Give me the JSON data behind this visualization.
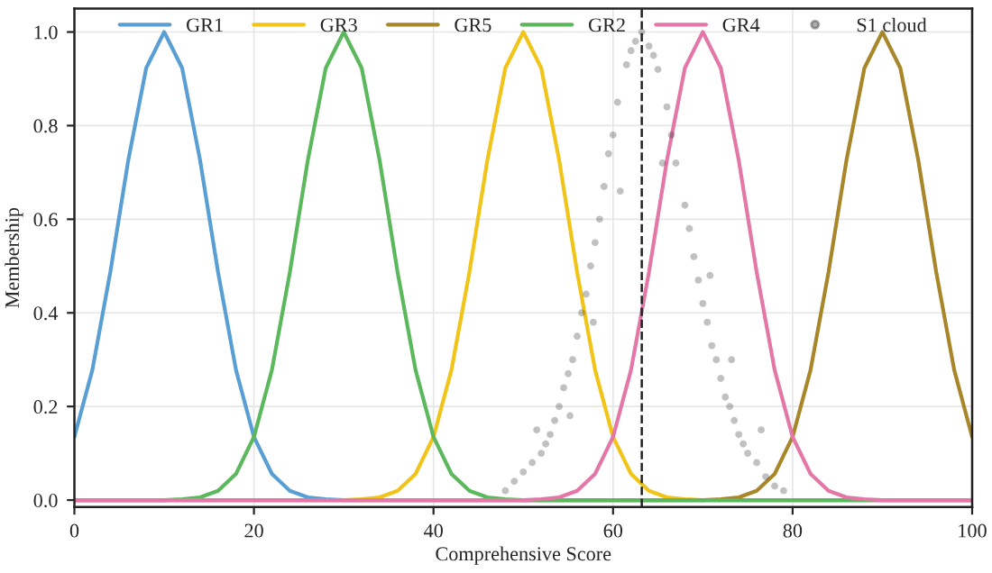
{
  "chart_data": {
    "type": "line",
    "xlabel": "Comprehensive Score",
    "ylabel": "Membership",
    "xlim": [
      0,
      100
    ],
    "xticks": [
      0,
      20,
      40,
      60,
      80,
      100
    ],
    "ylim": [
      -0.015,
      1.05
    ],
    "yticks": [
      {
        "value": 0,
        "label": "0.0"
      },
      {
        "value": 0.2,
        "label": "0.2"
      },
      {
        "value": 0.4,
        "label": "0.4"
      },
      {
        "value": 0.6,
        "label": "0.6"
      },
      {
        "value": 0.8,
        "label": "0.8"
      },
      {
        "value": 1,
        "label": "1.0"
      }
    ],
    "grid": true,
    "legend": "top",
    "marker": "none",
    "line_style": "solid",
    "series": [
      {
        "name": "GR1",
        "color": "#5a9fd4",
        "x": [
          0,
          2,
          4,
          6,
          8,
          10,
          12,
          14,
          16,
          18,
          20,
          22,
          24,
          26,
          28,
          30,
          100
        ],
        "values": [
          0.135,
          0.278,
          0.487,
          0.726,
          0.923,
          1,
          0.923,
          0.726,
          0.487,
          0.278,
          0.135,
          0.056,
          0.02,
          0.006,
          0.002,
          0,
          0
        ]
      },
      {
        "name": "GR3",
        "color": "#f0c419",
        "x": [
          0,
          30,
          32,
          34,
          36,
          38,
          40,
          42,
          44,
          46,
          48,
          50,
          52,
          54,
          56,
          58,
          60,
          62,
          64,
          66,
          68,
          70,
          100
        ],
        "values": [
          0,
          0,
          0.002,
          0.006,
          0.02,
          0.056,
          0.135,
          0.278,
          0.487,
          0.726,
          0.923,
          1,
          0.923,
          0.726,
          0.487,
          0.278,
          0.135,
          0.056,
          0.02,
          0.006,
          0.002,
          0,
          0
        ]
      },
      {
        "name": "GR5",
        "color": "#a8862a",
        "x": [
          0,
          70,
          72,
          74,
          76,
          78,
          80,
          82,
          84,
          86,
          88,
          90,
          92,
          94,
          96,
          98,
          100
        ],
        "values": [
          0,
          0,
          0.002,
          0.006,
          0.02,
          0.056,
          0.135,
          0.278,
          0.487,
          0.726,
          0.923,
          1,
          0.923,
          0.726,
          0.487,
          0.278,
          0.135
        ]
      },
      {
        "name": "GR2",
        "color": "#5cb85c",
        "x": [
          0,
          10,
          12,
          14,
          16,
          18,
          20,
          22,
          24,
          26,
          28,
          30,
          32,
          34,
          36,
          38,
          40,
          42,
          44,
          46,
          48,
          50,
          100
        ],
        "values": [
          0,
          0,
          0.002,
          0.006,
          0.02,
          0.056,
          0.135,
          0.278,
          0.487,
          0.726,
          0.923,
          1,
          0.923,
          0.726,
          0.487,
          0.278,
          0.135,
          0.056,
          0.02,
          0.006,
          0.002,
          0,
          0
        ]
      },
      {
        "name": "GR4",
        "color": "#e377a8",
        "x": [
          0,
          50,
          52,
          54,
          56,
          58,
          60,
          62,
          64,
          66,
          68,
          70,
          72,
          74,
          76,
          78,
          80,
          82,
          84,
          86,
          88,
          90,
          100
        ],
        "values": [
          0,
          0,
          0.002,
          0.006,
          0.02,
          0.056,
          0.135,
          0.278,
          0.487,
          0.726,
          0.923,
          1,
          0.923,
          0.726,
          0.487,
          0.278,
          0.135,
          0.056,
          0.02,
          0.006,
          0.002,
          0,
          0
        ]
      },
      {
        "name": "S1 cloud",
        "type": "scatter",
        "marker": "circle",
        "color": "#333333",
        "x": [
          63.2,
          62.5,
          64,
          61.5,
          65,
          62,
          64.5,
          60.5,
          66,
          60,
          66.5,
          59.5,
          67,
          59,
          68,
          58.5,
          68.5,
          58,
          69,
          57.5,
          69.5,
          57,
          70,
          56.5,
          70.5,
          56,
          71,
          55.5,
          71.5,
          55,
          72,
          54.5,
          72.5,
          54,
          73,
          53.5,
          73.5,
          53,
          74,
          52.5,
          74.5,
          52,
          75,
          51,
          76,
          50,
          77,
          49,
          78,
          48,
          79,
          60.8,
          65.5,
          57.8,
          70.8,
          55.2,
          73.2,
          51.5,
          76.5
        ],
        "values": [
          1.0,
          0.98,
          0.97,
          0.93,
          0.92,
          0.96,
          0.95,
          0.85,
          0.84,
          0.78,
          0.78,
          0.74,
          0.72,
          0.67,
          0.63,
          0.6,
          0.58,
          0.55,
          0.52,
          0.5,
          0.47,
          0.44,
          0.42,
          0.4,
          0.38,
          0.35,
          0.33,
          0.3,
          0.3,
          0.27,
          0.26,
          0.24,
          0.22,
          0.2,
          0.2,
          0.17,
          0.17,
          0.14,
          0.14,
          0.12,
          0.12,
          0.1,
          0.1,
          0.08,
          0.08,
          0.06,
          0.05,
          0.04,
          0.03,
          0.02,
          0.02,
          0.66,
          0.72,
          0.38,
          0.48,
          0.18,
          0.3,
          0.15,
          0.15
        ]
      }
    ],
    "ref_lines": [
      {
        "axis": "x",
        "value": 63.2,
        "color": "#222222",
        "line_style": "dashed"
      }
    ]
  }
}
